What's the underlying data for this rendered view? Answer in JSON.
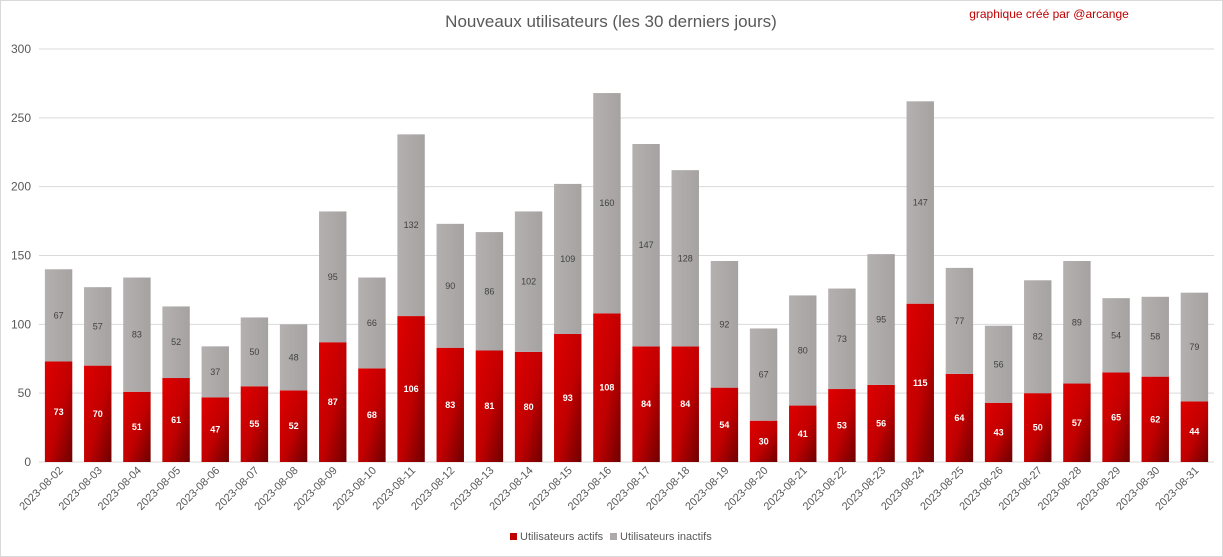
{
  "chart_data": {
    "type": "bar",
    "stacked": true,
    "title": "Nouveaux utilisateurs (les 30 derniers jours)",
    "credit": "graphique créé par @arcange",
    "categories": [
      "2023-08-02",
      "2023-08-03",
      "2023-08-04",
      "2023-08-05",
      "2023-08-06",
      "2023-08-07",
      "2023-08-08",
      "2023-08-09",
      "2023-08-10",
      "2023-08-11",
      "2023-08-12",
      "2023-08-13",
      "2023-08-14",
      "2023-08-15",
      "2023-08-16",
      "2023-08-17",
      "2023-08-18",
      "2023-08-19",
      "2023-08-20",
      "2023-08-21",
      "2023-08-22",
      "2023-08-23",
      "2023-08-24",
      "2023-08-25",
      "2023-08-26",
      "2023-08-27",
      "2023-08-28",
      "2023-08-29",
      "2023-08-30",
      "2023-08-31"
    ],
    "series": [
      {
        "name": "Utilisateurs actifs",
        "color": "#c00000",
        "values": [
          73,
          70,
          51,
          61,
          47,
          55,
          52,
          87,
          68,
          106,
          83,
          81,
          80,
          93,
          108,
          84,
          84,
          54,
          30,
          41,
          53,
          56,
          115,
          64,
          43,
          50,
          57,
          65,
          62,
          44
        ]
      },
      {
        "name": "Utilisateurs inactifs",
        "color": "#aeaaaa",
        "values": [
          67,
          57,
          83,
          52,
          37,
          50,
          48,
          95,
          66,
          132,
          90,
          86,
          102,
          109,
          160,
          147,
          128,
          92,
          67,
          80,
          73,
          95,
          147,
          77,
          56,
          82,
          89,
          54,
          58,
          79
        ]
      }
    ],
    "ylim": [
      0,
      300
    ],
    "yticks": [
      0,
      50,
      100,
      150,
      200,
      250,
      300
    ],
    "legend_position": "bottom",
    "grid": true
  }
}
